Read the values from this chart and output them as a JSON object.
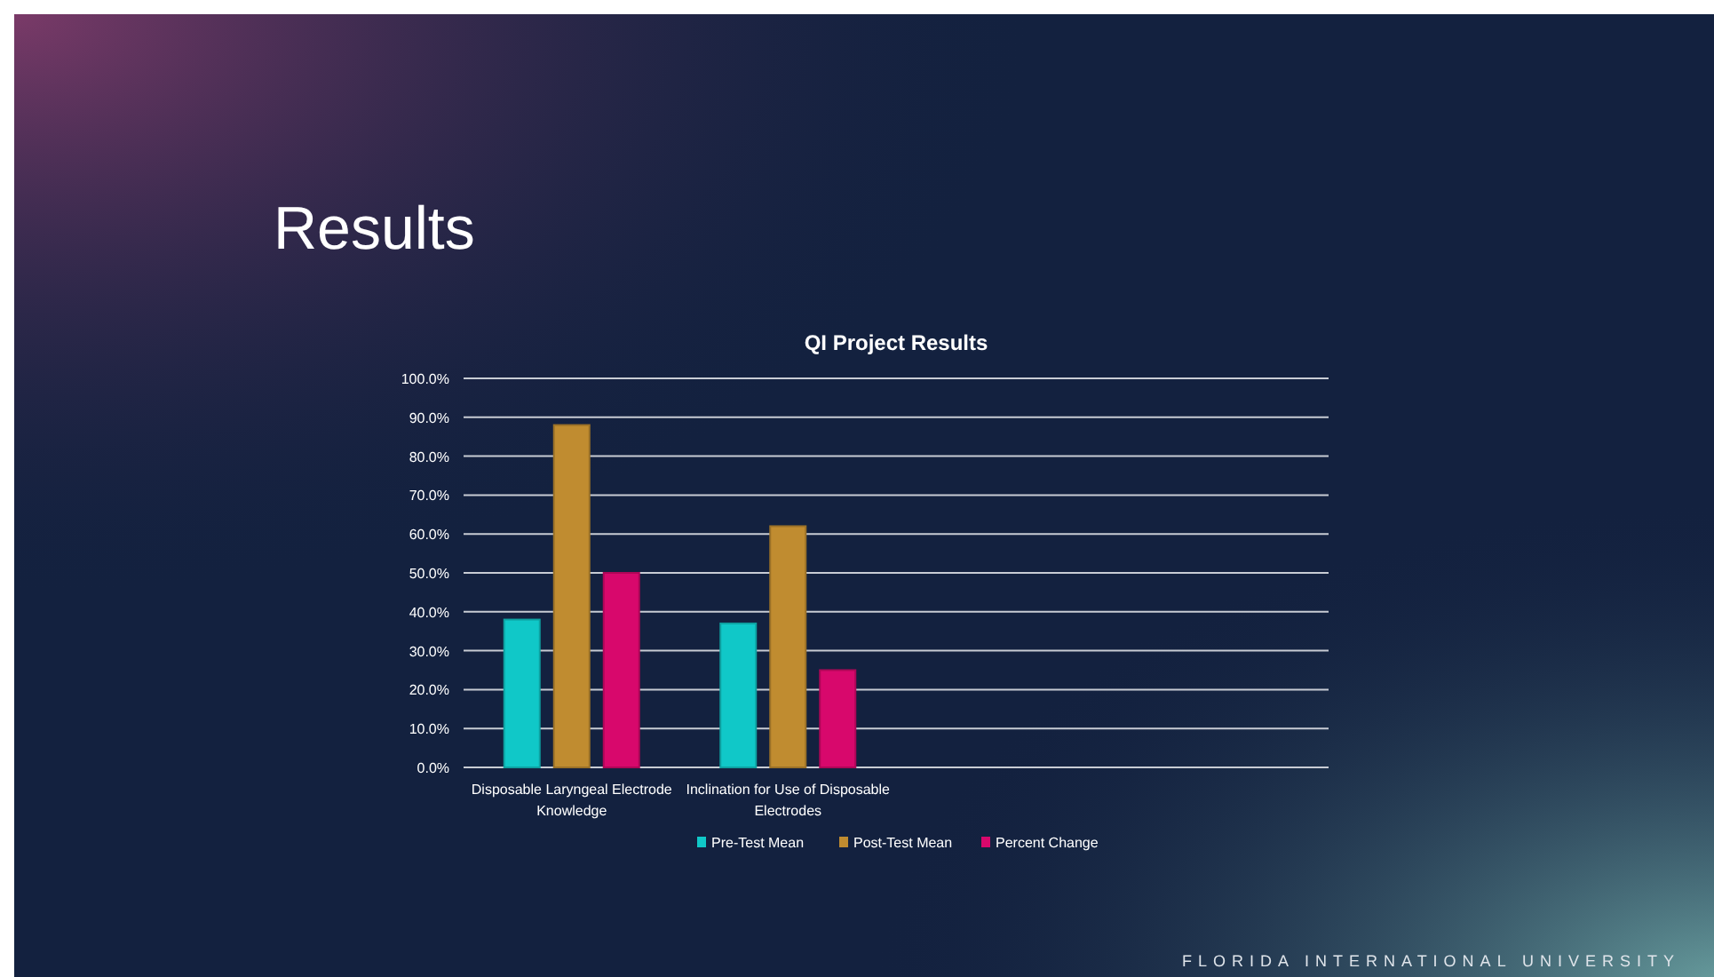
{
  "chart_data": {
    "type": "bar",
    "title": "QI Project Results",
    "categories": [
      "Disposable Laryngeal Electrode Knowledge",
      "Inclination for Use of Disposable Electrodes",
      null,
      null
    ],
    "series": [
      {
        "name": "Pre-Test Mean",
        "color": "#10c8c8",
        "values": [
          38,
          37,
          null,
          null
        ]
      },
      {
        "name": "Post-Test Mean",
        "color": "#c08c30",
        "values": [
          88,
          62,
          null,
          null
        ]
      },
      {
        "name": "Percent Change",
        "color": "#d8086c",
        "values": [
          50,
          25,
          null,
          null
        ]
      }
    ],
    "ylim": [
      0,
      100
    ],
    "yticks": [
      {
        "value": 0,
        "label": "0.0%"
      },
      {
        "value": 10,
        "label": "10.0%"
      },
      {
        "value": 20,
        "label": "20.0%"
      },
      {
        "value": 30,
        "label": "30.0%"
      },
      {
        "value": 40,
        "label": "40.0%"
      },
      {
        "value": 50,
        "label": "50.0%"
      },
      {
        "value": 60,
        "label": "60.0%"
      },
      {
        "value": 70,
        "label": "70.0%"
      },
      {
        "value": 80,
        "label": "80.0%"
      },
      {
        "value": 90,
        "label": "90.0%"
      },
      {
        "value": 100,
        "label": "100.0%"
      }
    ],
    "grid": "y",
    "legend": "bottom",
    "annotations": [
      "Results",
      "FLORIDA INTERNATIONAL UNIVERSITY"
    ]
  }
}
